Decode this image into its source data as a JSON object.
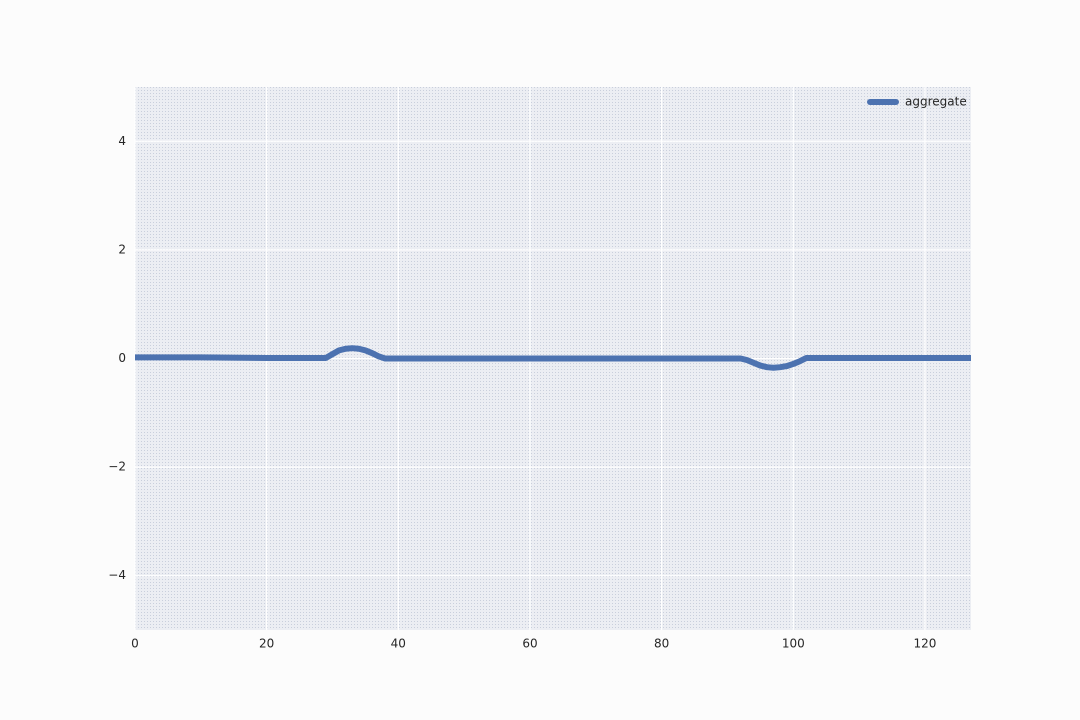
{
  "chart_data": {
    "type": "line",
    "x": [
      0,
      10,
      20,
      29,
      30,
      31,
      32,
      33,
      34,
      35,
      36,
      37,
      38,
      40,
      60,
      80,
      92,
      93,
      94,
      95,
      96,
      97,
      98,
      99,
      100,
      101,
      102,
      110,
      120,
      127
    ],
    "series": [
      {
        "name": "aggregate",
        "color": "#4c72b0",
        "values": [
          0.02,
          0.02,
          0.01,
          0.01,
          0.08,
          0.15,
          0.18,
          0.19,
          0.18,
          0.15,
          0.1,
          0.04,
          0.0,
          0.0,
          0.0,
          0.0,
          0.0,
          -0.03,
          -0.08,
          -0.13,
          -0.16,
          -0.17,
          -0.16,
          -0.14,
          -0.1,
          -0.05,
          0.01,
          0.01,
          0.01,
          0.01
        ]
      }
    ],
    "xlim": [
      0,
      127
    ],
    "ylim": [
      -5,
      5
    ],
    "xticks": [
      0,
      20,
      40,
      60,
      80,
      100,
      120
    ],
    "yticks": [
      {
        "value": -4,
        "label": "−4"
      },
      {
        "value": -2,
        "label": "−2"
      },
      0,
      2,
      4
    ],
    "grid": true,
    "legend": "upper right"
  }
}
